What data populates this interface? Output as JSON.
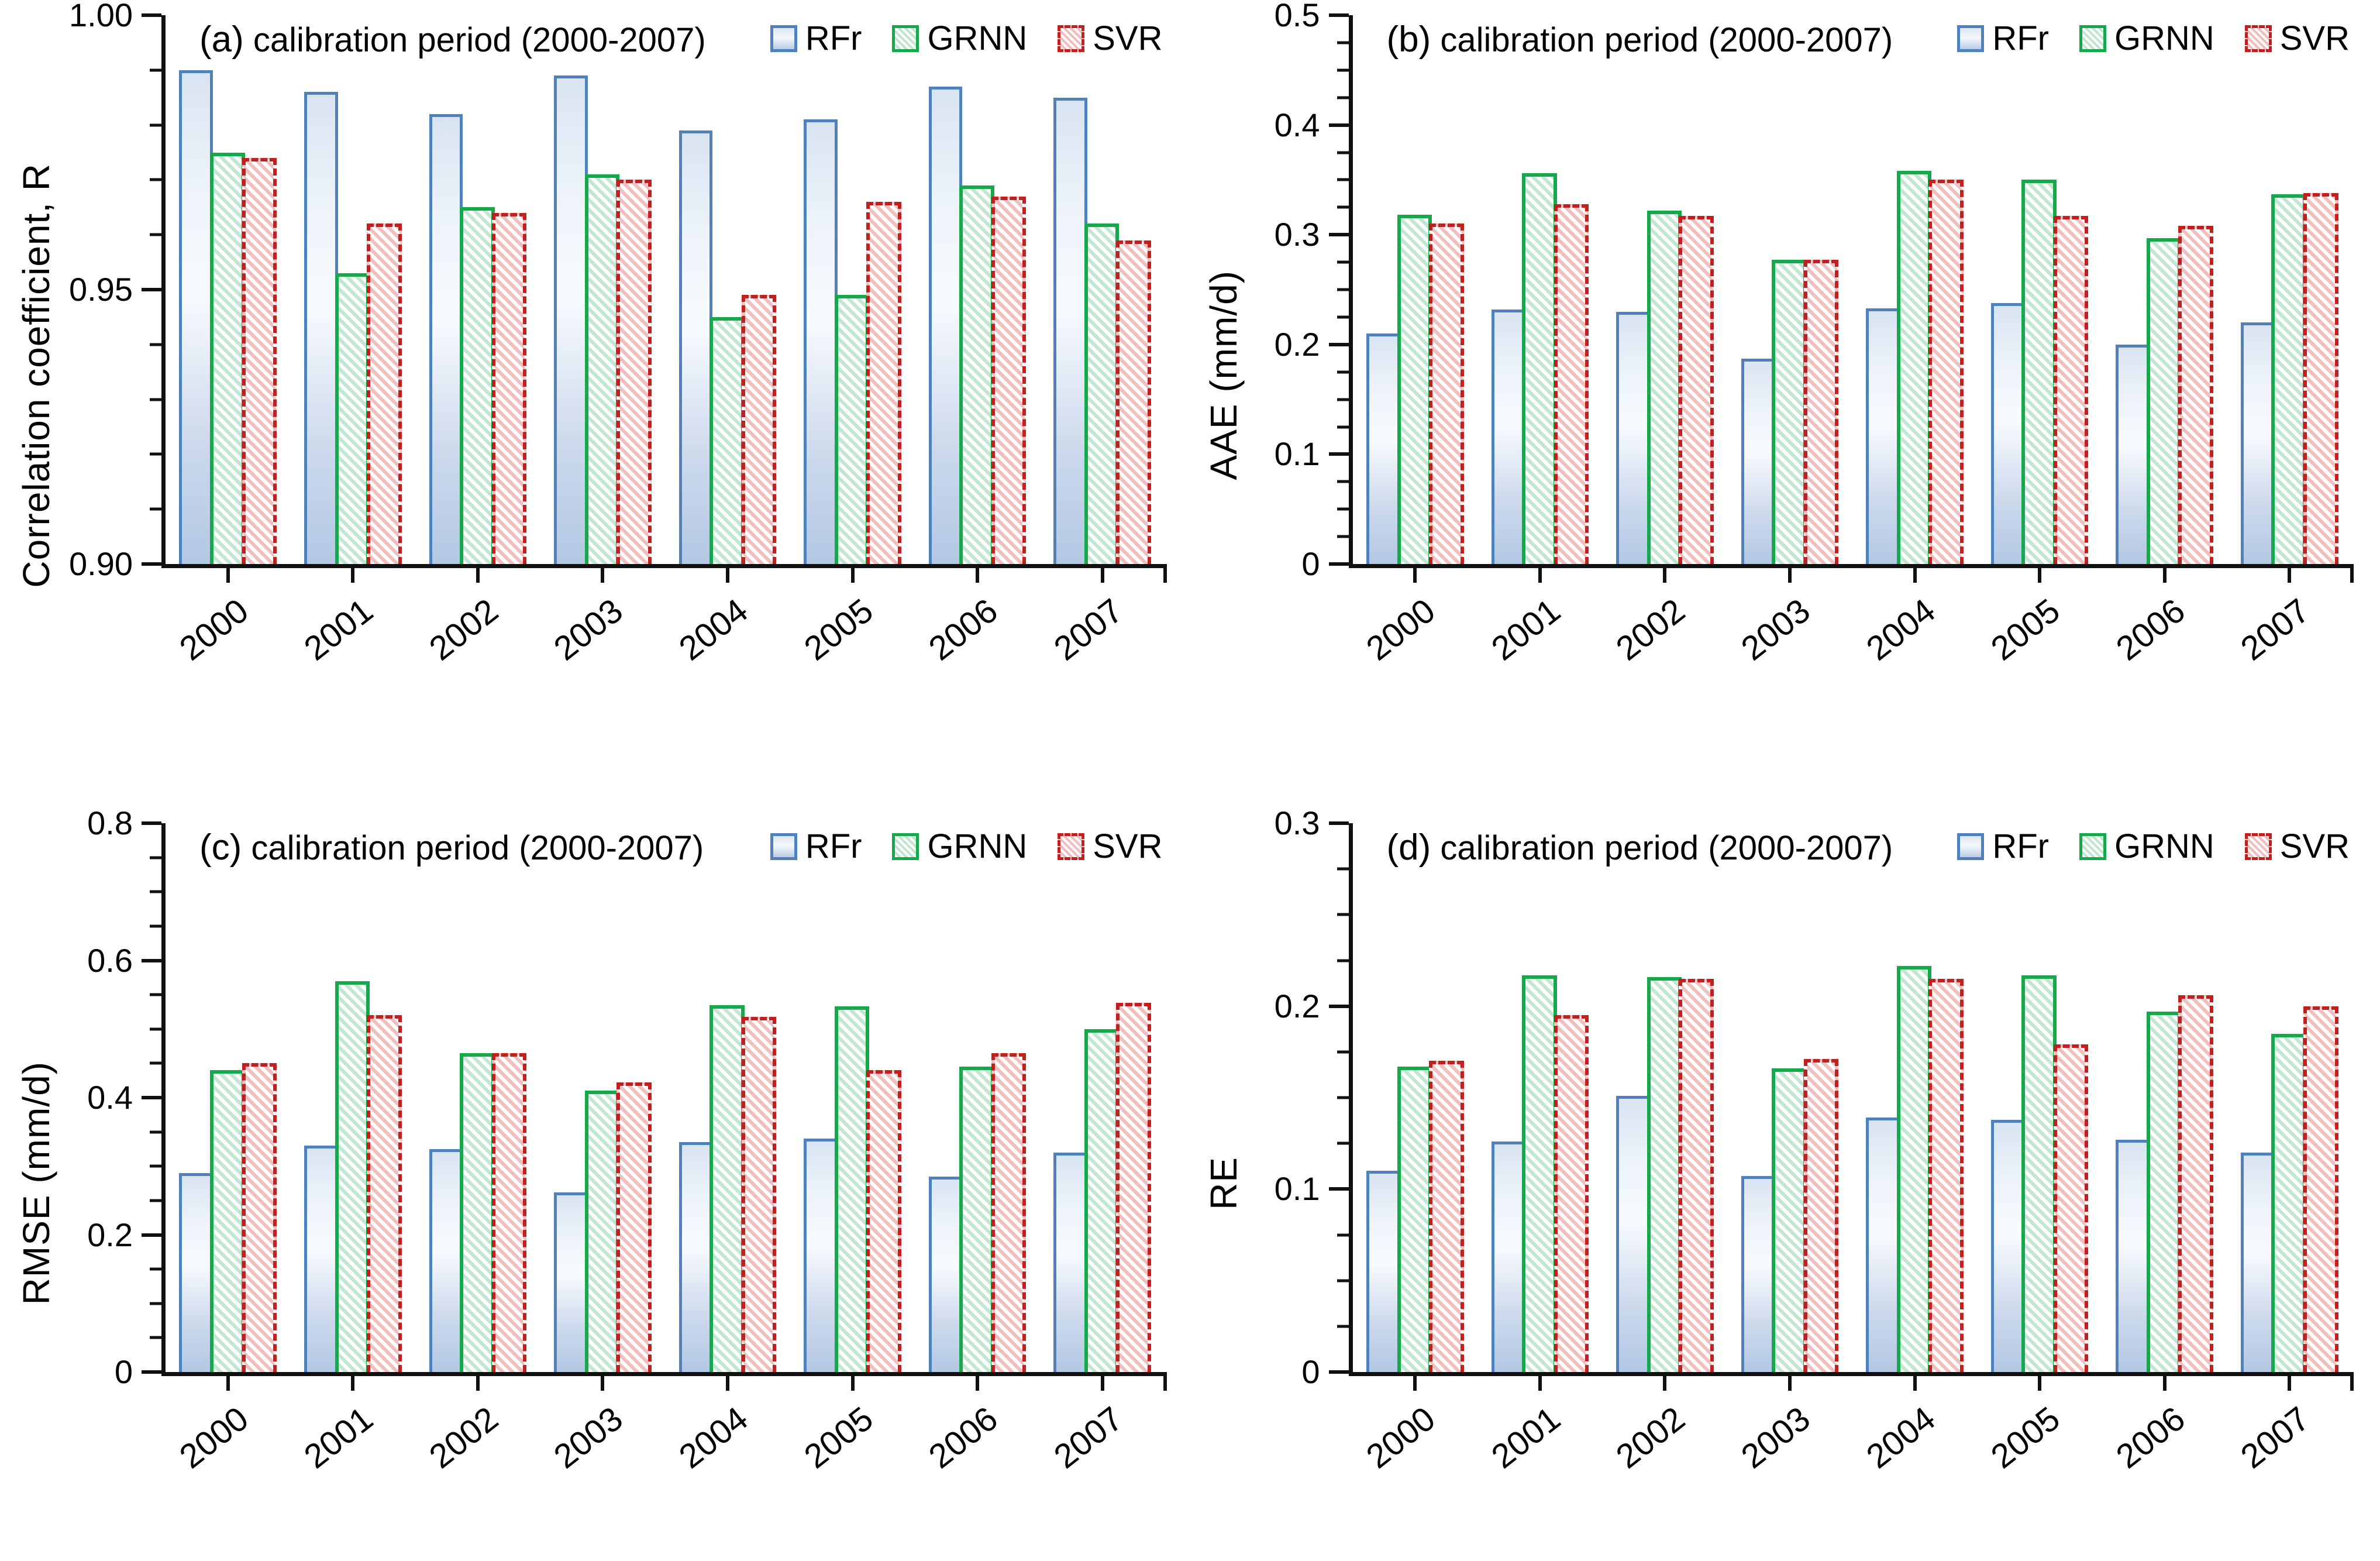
{
  "figure": {
    "background": "#ffffff",
    "axis_color": "#111111",
    "colors": {
      "rfr_border": "#4f81bd",
      "rfr_fill_light": "#dce6f2",
      "rfr_fill_dark": "#b2c8e4",
      "grnn_border": "#16a94c",
      "grnn_hatch": "#c2e7d1",
      "svr_border": "#c41f1f",
      "svr_hatch": "#f2bfbf"
    },
    "icons": {
      "legend_swatch_rfr": "blue-gradient-square",
      "legend_swatch_grnn": "green-hatched-square",
      "legend_swatch_svr": "red-dashed-hatched-square"
    }
  },
  "chart_data": [
    {
      "type": "bar",
      "panel": "(a)",
      "title": "calibration period (2000-2007)",
      "ylabel": "Correlation coefficient, R",
      "xlabel": "",
      "ylim": [
        0.9,
        1.0
      ],
      "grid": false,
      "legend_position": "top-right-inside",
      "ytick_major": [
        {
          "v": 0.9,
          "label": "0.90"
        },
        {
          "v": 0.95,
          "label": "0.95"
        },
        {
          "v": 1.0,
          "label": "1.00"
        }
      ],
      "ytick_minor_step": 0.01,
      "categories": [
        "2000",
        "2001",
        "2002",
        "2003",
        "2004",
        "2005",
        "2006",
        "2007"
      ],
      "series": [
        {
          "name": "RFr",
          "values": [
            0.99,
            0.986,
            0.982,
            0.989,
            0.979,
            0.981,
            0.987,
            0.985
          ]
        },
        {
          "name": "GRNN",
          "values": [
            0.975,
            0.953,
            0.965,
            0.971,
            0.945,
            0.949,
            0.969,
            0.962
          ]
        },
        {
          "name": "SVR",
          "values": [
            0.974,
            0.962,
            0.964,
            0.97,
            0.949,
            0.966,
            0.967,
            0.959
          ]
        }
      ]
    },
    {
      "type": "bar",
      "panel": "(b)",
      "title": "calibration period (2000-2007)",
      "ylabel": "AAE (mm/d)",
      "xlabel": "",
      "ylim": [
        0,
        0.5
      ],
      "grid": false,
      "legend_position": "top-right-inside",
      "ytick_major": [
        {
          "v": 0,
          "label": "0"
        },
        {
          "v": 0.1,
          "label": "0.1"
        },
        {
          "v": 0.2,
          "label": "0.2"
        },
        {
          "v": 0.3,
          "label": "0.3"
        },
        {
          "v": 0.4,
          "label": "0.4"
        },
        {
          "v": 0.5,
          "label": "0.5"
        }
      ],
      "ytick_minor_step": 0.025,
      "categories": [
        "2000",
        "2001",
        "2002",
        "2003",
        "2004",
        "2005",
        "2006",
        "2007"
      ],
      "series": [
        {
          "name": "RFr",
          "values": [
            0.21,
            0.232,
            0.23,
            0.187,
            0.233,
            0.238,
            0.2,
            0.22
          ]
        },
        {
          "name": "GRNN",
          "values": [
            0.318,
            0.356,
            0.322,
            0.277,
            0.358,
            0.35,
            0.297,
            0.337
          ]
        },
        {
          "name": "SVR",
          "values": [
            0.31,
            0.328,
            0.317,
            0.277,
            0.35,
            0.317,
            0.308,
            0.338
          ]
        }
      ]
    },
    {
      "type": "bar",
      "panel": "(c)",
      "title": "calibration period (2000-2007)",
      "ylabel": "RMSE (mm/d)",
      "xlabel": "",
      "ylim": [
        0,
        0.8
      ],
      "grid": false,
      "legend_position": "top-right-inside",
      "ytick_major": [
        {
          "v": 0,
          "label": "0"
        },
        {
          "v": 0.2,
          "label": "0.2"
        },
        {
          "v": 0.4,
          "label": "0.4"
        },
        {
          "v": 0.6,
          "label": "0.6"
        },
        {
          "v": 0.8,
          "label": "0.8"
        }
      ],
      "ytick_minor_step": 0.05,
      "categories": [
        "2000",
        "2001",
        "2002",
        "2003",
        "2004",
        "2005",
        "2006",
        "2007"
      ],
      "series": [
        {
          "name": "RFr",
          "values": [
            0.29,
            0.33,
            0.325,
            0.262,
            0.335,
            0.34,
            0.285,
            0.32
          ]
        },
        {
          "name": "GRNN",
          "values": [
            0.44,
            0.57,
            0.465,
            0.41,
            0.535,
            0.533,
            0.445,
            0.5
          ]
        },
        {
          "name": "SVR",
          "values": [
            0.45,
            0.52,
            0.465,
            0.422,
            0.518,
            0.44,
            0.465,
            0.538
          ]
        }
      ]
    },
    {
      "type": "bar",
      "panel": "(d)",
      "title": "calibration period (2000-2007)",
      "ylabel": "RE",
      "xlabel": "",
      "ylim": [
        0,
        0.3
      ],
      "grid": false,
      "legend_position": "top-right-inside",
      "ytick_major": [
        {
          "v": 0,
          "label": "0"
        },
        {
          "v": 0.1,
          "label": "0.1"
        },
        {
          "v": 0.2,
          "label": "0.2"
        },
        {
          "v": 0.3,
          "label": "0.3"
        }
      ],
      "ytick_minor_step": 0.025,
      "categories": [
        "2000",
        "2001",
        "2002",
        "2003",
        "2004",
        "2005",
        "2006",
        "2007"
      ],
      "series": [
        {
          "name": "RFr",
          "values": [
            0.11,
            0.126,
            0.151,
            0.107,
            0.139,
            0.138,
            0.127,
            0.12
          ]
        },
        {
          "name": "GRNN",
          "values": [
            0.167,
            0.217,
            0.216,
            0.166,
            0.222,
            0.217,
            0.197,
            0.185
          ]
        },
        {
          "name": "SVR",
          "values": [
            0.17,
            0.195,
            0.215,
            0.171,
            0.215,
            0.179,
            0.206,
            0.2
          ]
        }
      ]
    }
  ]
}
